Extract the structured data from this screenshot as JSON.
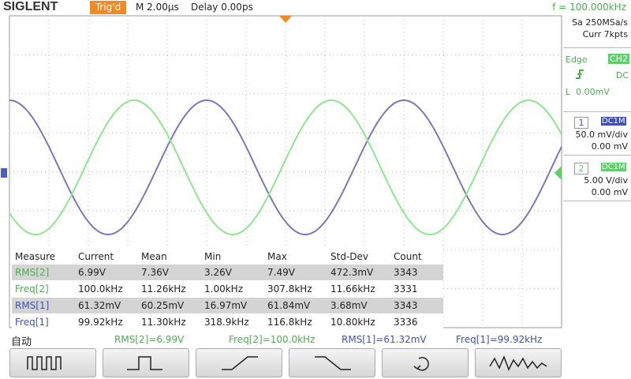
{
  "header": {
    "brand": "SIGLENT",
    "trigger_status": "Trig'd",
    "timebase": "M 2.00μs",
    "delay": "Delay 0.00ps",
    "frequency": "f = 100.000kHz"
  },
  "side_panel": {
    "sample_rate": "Sa 250MSa/s",
    "memory": "Curr 7kpts",
    "trigger": {
      "type": "Edge",
      "source": "CH2",
      "coupling": "DC",
      "level": "L  0.00mV"
    },
    "channels": [
      {
        "number": "1",
        "coupling": "DC1M",
        "scale": "50.0 mV/div",
        "offset": "0.00 mV"
      },
      {
        "number": "2",
        "coupling": "DC1M",
        "scale": "5.00 V/div",
        "offset": "0.00 mV"
      }
    ]
  },
  "measurements": {
    "columns": [
      "Measure",
      "Current",
      "Mean",
      "Min",
      "Max",
      "Std-Dev",
      "Count"
    ],
    "rows": [
      [
        "RMS[2]",
        "6.99V",
        "7.36V",
        "3.26V",
        "7.49V",
        "472.3mV",
        "3343"
      ],
      [
        "Freq[2]",
        "100.0kHz",
        "11.26kHz",
        "1.00kHz",
        "307.8kHz",
        "11.66kHz",
        "3331"
      ],
      [
        "RMS[1]",
        "61.32mV",
        "60.25mV",
        "16.97mV",
        "61.84mV",
        "3.68mV",
        "3343"
      ],
      [
        "Freq[1]",
        "99.92kHz",
        "11.30kHz",
        "318.9kHz",
        "116.8kHz",
        "10.80kHz",
        "3336"
      ]
    ]
  },
  "status_bar": {
    "mode": "自动",
    "readouts": [
      "RMS[2]=6.99V",
      "Freq[2]=100.0kHz",
      "RMS[1]=61.32mV",
      "Freq[1]=99.92kHz"
    ]
  }
}
